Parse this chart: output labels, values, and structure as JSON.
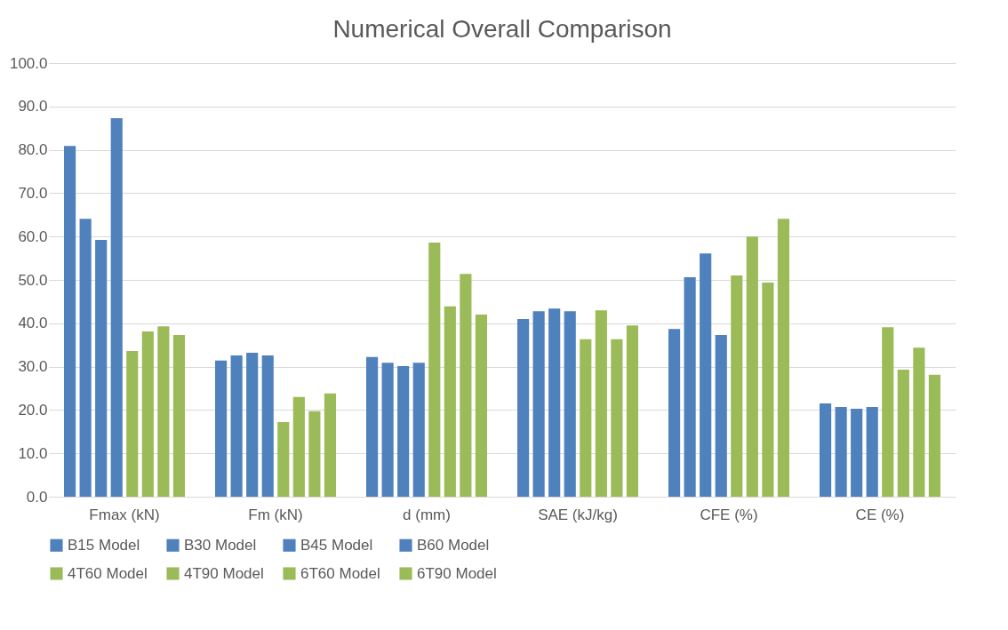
{
  "chart_data": {
    "type": "bar",
    "title": "Numerical Overall Comparison",
    "categories": [
      "Fmax (kN)",
      "Fm (kN)",
      "d (mm)",
      "SAE (kJ/kg)",
      "CFE (%)",
      "CE (%)"
    ],
    "series": [
      {
        "name": "B15 Model",
        "color": "#4f81bd",
        "values": [
          80.9,
          31.4,
          32.2,
          41.0,
          38.7,
          21.5
        ]
      },
      {
        "name": "B30 Model",
        "color": "#4f81bd",
        "values": [
          64.1,
          32.6,
          30.9,
          42.8,
          50.6,
          20.7
        ]
      },
      {
        "name": "B45 Model",
        "color": "#4f81bd",
        "values": [
          59.2,
          33.2,
          30.1,
          43.4,
          56.1,
          20.3
        ]
      },
      {
        "name": "B60 Model",
        "color": "#4f81bd",
        "values": [
          87.3,
          32.6,
          30.9,
          42.8,
          37.3,
          20.7
        ]
      },
      {
        "name": "4T60 Model",
        "color": "#9bbb59",
        "values": [
          33.6,
          17.2,
          58.6,
          36.3,
          51.0,
          39.1
        ]
      },
      {
        "name": "4T90 Model",
        "color": "#9bbb59",
        "values": [
          38.1,
          23.0,
          43.9,
          43.0,
          60.0,
          29.3
        ]
      },
      {
        "name": "6T60 Model",
        "color": "#9bbb59",
        "values": [
          39.3,
          19.7,
          51.4,
          36.3,
          49.4,
          34.4
        ]
      },
      {
        "name": "6T90 Model",
        "color": "#9bbb59",
        "values": [
          37.3,
          23.8,
          42.0,
          39.5,
          64.1,
          28.1
        ]
      }
    ],
    "ylim": [
      0,
      100
    ],
    "yticks": [
      {
        "value": 0,
        "label": "0.0"
      },
      {
        "value": 10,
        "label": "10.0"
      },
      {
        "value": 20,
        "label": "20.0"
      },
      {
        "value": 30,
        "label": "30.0"
      },
      {
        "value": 40,
        "label": "40.0"
      },
      {
        "value": 50,
        "label": "50.0"
      },
      {
        "value": 60,
        "label": "60.0"
      },
      {
        "value": 70,
        "label": "70.0"
      },
      {
        "value": 80,
        "label": "80.0"
      },
      {
        "value": 90,
        "label": "90.0"
      },
      {
        "value": 100,
        "label": "100.0"
      }
    ],
    "grid": "y",
    "legend": "bottom"
  }
}
